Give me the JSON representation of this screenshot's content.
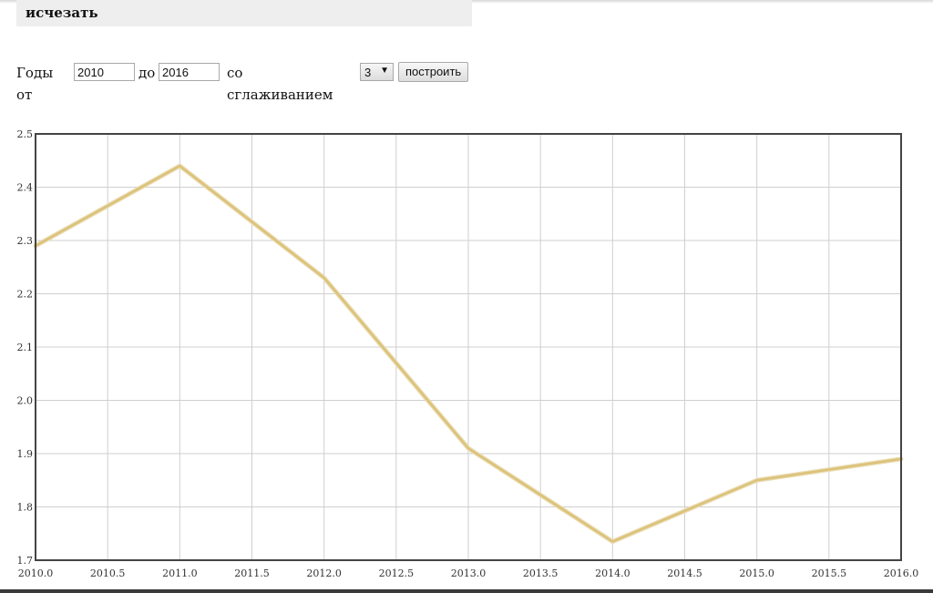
{
  "header": {
    "word": "исчезать"
  },
  "controls": {
    "years_label": "Годы от",
    "from_value": "2010",
    "to_label": "до",
    "to_value": "2016",
    "smoothing_label": "со сглаживанием",
    "smoothing_value": "3",
    "build_button": "построить"
  },
  "colors": {
    "line": "#dcc278",
    "grid": "#cfcfcf",
    "frame": "#444444"
  },
  "chart_data": {
    "type": "line",
    "title": "",
    "xlabel": "",
    "ylabel": "",
    "xlim": [
      2010.0,
      2016.0
    ],
    "ylim": [
      1.7,
      2.5
    ],
    "grid": true,
    "x": [
      2010,
      2011,
      2012,
      2013,
      2014,
      2015,
      2016
    ],
    "series": [
      {
        "values": [
          2.29,
          2.44,
          2.23,
          1.91,
          1.735,
          1.85,
          1.89
        ]
      }
    ],
    "x_ticks": [
      "2010.0",
      "2010.5",
      "2011.0",
      "2011.5",
      "2012.0",
      "2012.5",
      "2013.0",
      "2013.5",
      "2014.0",
      "2014.5",
      "2015.0",
      "2015.5",
      "2016.0"
    ],
    "y_ticks": [
      "1.7",
      "1.8",
      "1.9",
      "2.0",
      "2.1",
      "2.2",
      "2.3",
      "2.4",
      "2.5"
    ]
  }
}
